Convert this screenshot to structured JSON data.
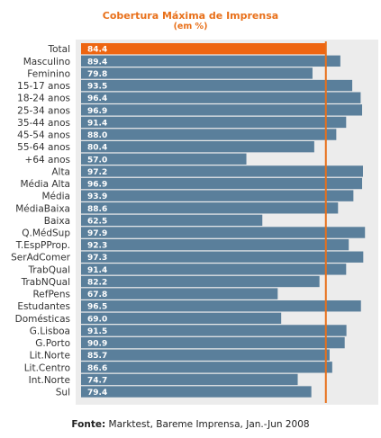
{
  "title": "Cobertura Máxima de Imprensa",
  "subtitle": "(em %)",
  "source_label": "Fonte:",
  "source_text": "Marktest, Bareme Imprensa, Jan.-Jun 2008",
  "colors": {
    "highlight_bar": "#ee6511",
    "bar": "#5a7f9b",
    "reference_line": "#e8701a",
    "plot_background": "#ececec",
    "title": "#e8701a"
  },
  "chart_data": {
    "type": "bar",
    "orientation": "horizontal",
    "title": "Cobertura Máxima de Imprensa",
    "subtitle": "(em %)",
    "xlim": [
      0,
      100
    ],
    "reference_line": 84.4,
    "highlight_category": "Total",
    "categories": [
      "Total",
      "Masculino",
      "Feminino",
      "15-17 anos",
      "18-24 anos",
      "25-34 anos",
      "35-44 anos",
      "45-54 anos",
      "55-64 anos",
      "+64 anos",
      "Alta",
      "Média Alta",
      "Média",
      "MédiaBaixa",
      "Baixa",
      "Q.MédSup",
      "T.EspPProp.",
      "SerAdComer",
      "TrabQual",
      "TrabNQual",
      "RefPens",
      "Estudantes",
      "Domésticas",
      "G.Lisboa",
      "G.Porto",
      "Lit.Norte",
      "Lit.Centro",
      "Int.Norte",
      "Sul"
    ],
    "values": [
      84.4,
      89.4,
      79.8,
      93.5,
      96.4,
      96.9,
      91.4,
      88.0,
      80.4,
      57.0,
      97.2,
      96.9,
      93.9,
      88.6,
      62.5,
      97.9,
      92.3,
      97.3,
      91.4,
      82.2,
      67.8,
      96.5,
      69.0,
      91.5,
      90.9,
      85.7,
      86.6,
      74.7,
      79.4
    ],
    "value_labels": [
      "84.4",
      "89.4",
      "79.8",
      "93.5",
      "96.4",
      "96.9",
      "91.4",
      "88.0",
      "80.4",
      "57.0",
      "97.2",
      "96.9",
      "93.9",
      "88.6",
      "62.5",
      "97.9",
      "92.3",
      "97.3",
      "91.4",
      "82.2",
      "67.8",
      "96.5",
      "69.0",
      "91.5",
      "90.9",
      "85.7",
      "86.6",
      "74.7",
      "79.4"
    ]
  }
}
